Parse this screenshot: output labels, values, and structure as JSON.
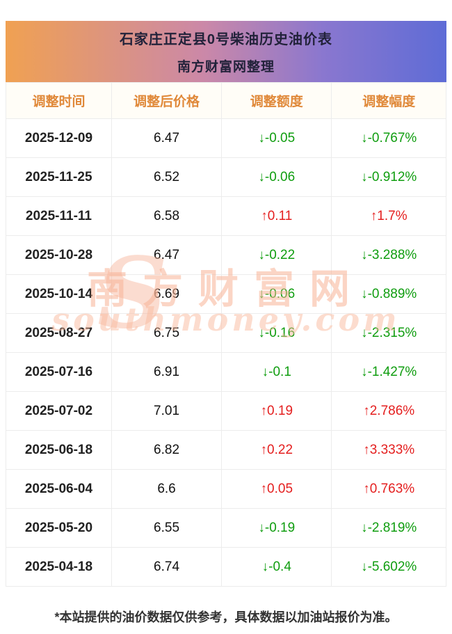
{
  "header": {
    "title_line1": "石家庄正定县0号柴油历史油价表",
    "title_line2": "南方财富网整理"
  },
  "table": {
    "columns": [
      "调整时间",
      "调整后价格",
      "调整额度",
      "调整幅度"
    ],
    "rows": [
      {
        "date": "2025-12-09",
        "price": "6.47",
        "change": "↓-0.05",
        "pct": "↓-0.767%",
        "direction": "down"
      },
      {
        "date": "2025-11-25",
        "price": "6.52",
        "change": "↓-0.06",
        "pct": "↓-0.912%",
        "direction": "down"
      },
      {
        "date": "2025-11-11",
        "price": "6.58",
        "change": "↑0.11",
        "pct": "↑1.7%",
        "direction": "up"
      },
      {
        "date": "2025-10-28",
        "price": "6.47",
        "change": "↓-0.22",
        "pct": "↓-3.288%",
        "direction": "down"
      },
      {
        "date": "2025-10-14",
        "price": "6.69",
        "change": "↓-0.06",
        "pct": "↓-0.889%",
        "direction": "down"
      },
      {
        "date": "2025-08-27",
        "price": "6.75",
        "change": "↓-0.16",
        "pct": "↓-2.315%",
        "direction": "down"
      },
      {
        "date": "2025-07-16",
        "price": "6.91",
        "change": "↓-0.1",
        "pct": "↓-1.427%",
        "direction": "down"
      },
      {
        "date": "2025-07-02",
        "price": "7.01",
        "change": "↑0.19",
        "pct": "↑2.786%",
        "direction": "up"
      },
      {
        "date": "2025-06-18",
        "price": "6.82",
        "change": "↑0.22",
        "pct": "↑3.333%",
        "direction": "up"
      },
      {
        "date": "2025-06-04",
        "price": "6.6",
        "change": "↑0.05",
        "pct": "↑0.763%",
        "direction": "up"
      },
      {
        "date": "2025-05-20",
        "price": "6.55",
        "change": "↓-0.19",
        "pct": "↓-2.819%",
        "direction": "down"
      },
      {
        "date": "2025-04-18",
        "price": "6.74",
        "change": "↓-0.4",
        "pct": "↓-5.602%",
        "direction": "down"
      }
    ]
  },
  "watermark": {
    "logo": "S",
    "cn": "南方财富网",
    "en": "southmoney.com"
  },
  "footer": {
    "note": "*本站提供的油价数据仅供参考，具体数据以加油站报价为准。"
  },
  "colors": {
    "up": "#e41e1e",
    "down": "#0f9d0f",
    "header_text": "#e0893a",
    "banner_gradient_left": "#f0a152",
    "banner_gradient_right": "#5e6cd6"
  }
}
